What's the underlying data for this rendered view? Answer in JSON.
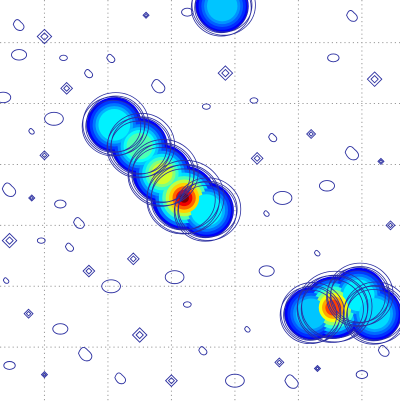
{
  "chart_data": {
    "type": "contour",
    "title": "",
    "xlabel": "",
    "ylabel": "",
    "grid": true,
    "grid_style": "dotted",
    "x_ticks": [
      1,
      2,
      3,
      4,
      5,
      6
    ],
    "y_ticks": [
      1,
      2,
      3,
      4,
      5,
      6
    ],
    "xlim": [
      0.3,
      6.6
    ],
    "ylim": [
      0.1,
      6.7
    ],
    "tick_labels_shown": false,
    "colormap": "jet",
    "colors": {
      "contour_line": "#2b2fa0",
      "grid": "#9a9a9a",
      "background": "#ffffff"
    },
    "sources": [
      {
        "name": "",
        "shape": "elongated diagonal",
        "centers": [
          {
            "x": 2.1,
            "y": 4.65,
            "level": 0.55
          },
          {
            "x": 2.5,
            "y": 4.3,
            "level": 0.6
          },
          {
            "x": 2.85,
            "y": 3.85,
            "level": 0.7
          },
          {
            "x": 3.2,
            "y": 3.45,
            "level": 1.0
          },
          {
            "x": 3.55,
            "y": 3.25,
            "level": 0.55
          }
        ]
      },
      {
        "name": "",
        "shape": "compact blob",
        "centers": [
          {
            "x": 5.55,
            "y": 1.65,
            "level": 0.9
          },
          {
            "x": 5.95,
            "y": 1.85,
            "level": 0.55
          },
          {
            "x": 5.2,
            "y": 1.55,
            "level": 0.45
          },
          {
            "x": 6.2,
            "y": 1.55,
            "level": 0.5
          }
        ]
      },
      {
        "name": "",
        "shape": "partial blob at top edge",
        "centers": [
          {
            "x": 3.8,
            "y": 6.6,
            "level": 0.45
          }
        ]
      }
    ],
    "noise_contours": [
      {
        "x": 2.6,
        "y": 6.45
      },
      {
        "x": 3.25,
        "y": 6.5
      },
      {
        "x": 0.6,
        "y": 6.3
      },
      {
        "x": 1.0,
        "y": 6.1
      },
      {
        "x": 1.3,
        "y": 5.75
      },
      {
        "x": 1.7,
        "y": 5.5
      },
      {
        "x": 1.35,
        "y": 5.25
      },
      {
        "x": 1.15,
        "y": 4.75
      },
      {
        "x": 0.8,
        "y": 4.55
      },
      {
        "x": 1.0,
        "y": 4.15
      },
      {
        "x": 0.35,
        "y": 5.1
      },
      {
        "x": 0.45,
        "y": 3.6
      },
      {
        "x": 0.8,
        "y": 3.45
      },
      {
        "x": 1.25,
        "y": 3.35
      },
      {
        "x": 1.55,
        "y": 3.05
      },
      {
        "x": 0.45,
        "y": 2.75
      },
      {
        "x": 0.95,
        "y": 2.75
      },
      {
        "x": 1.4,
        "y": 2.65
      },
      {
        "x": 1.7,
        "y": 2.25
      },
      {
        "x": 2.05,
        "y": 2.0
      },
      {
        "x": 0.4,
        "y": 2.1
      },
      {
        "x": 0.75,
        "y": 1.55
      },
      {
        "x": 1.25,
        "y": 1.3
      },
      {
        "x": 1.65,
        "y": 0.9
      },
      {
        "x": 1.0,
        "y": 0.55
      },
      {
        "x": 0.45,
        "y": 0.7
      },
      {
        "x": 2.2,
        "y": 0.5
      },
      {
        "x": 2.5,
        "y": 1.2
      },
      {
        "x": 3.25,
        "y": 1.7
      },
      {
        "x": 3.5,
        "y": 0.95
      },
      {
        "x": 3.0,
        "y": 0.45
      },
      {
        "x": 4.0,
        "y": 0.45
      },
      {
        "x": 4.2,
        "y": 1.3
      },
      {
        "x": 4.7,
        "y": 0.75
      },
      {
        "x": 4.5,
        "y": 2.25
      },
      {
        "x": 4.9,
        "y": 0.45
      },
      {
        "x": 5.3,
        "y": 0.65
      },
      {
        "x": 6.0,
        "y": 0.55
      },
      {
        "x": 6.35,
        "y": 0.95
      },
      {
        "x": 3.85,
        "y": 5.5
      },
      {
        "x": 4.3,
        "y": 5.05
      },
      {
        "x": 4.6,
        "y": 4.45
      },
      {
        "x": 4.35,
        "y": 4.1
      },
      {
        "x": 4.75,
        "y": 3.45
      },
      {
        "x": 4.5,
        "y": 3.2
      },
      {
        "x": 5.2,
        "y": 4.5
      },
      {
        "x": 5.45,
        "y": 3.65
      },
      {
        "x": 5.85,
        "y": 4.2
      },
      {
        "x": 6.3,
        "y": 4.05
      },
      {
        "x": 5.55,
        "y": 5.75
      },
      {
        "x": 5.85,
        "y": 6.45
      },
      {
        "x": 6.2,
        "y": 5.4
      },
      {
        "x": 3.55,
        "y": 4.95
      },
      {
        "x": 2.05,
        "y": 5.75
      },
      {
        "x": 2.4,
        "y": 2.45
      },
      {
        "x": 3.05,
        "y": 2.15
      },
      {
        "x": 5.3,
        "y": 2.55
      },
      {
        "x": 6.45,
        "y": 3.0
      },
      {
        "x": 0.6,
        "y": 5.8
      },
      {
        "x": 2.8,
        "y": 5.3
      }
    ]
  }
}
